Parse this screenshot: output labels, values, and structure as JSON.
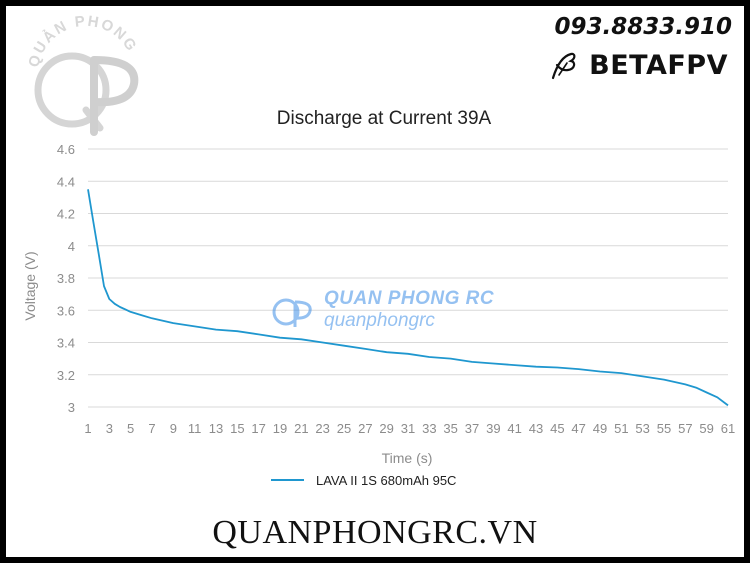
{
  "header": {
    "phone": "093.8833.910",
    "brand": "BETAFPV",
    "logo_text": "QUẢN PHONG"
  },
  "watermark": {
    "line1": "QUAN PHONG RC",
    "line2": "quanphongrc"
  },
  "footer": {
    "site": "QUANPHONGRC.VN"
  },
  "colors": {
    "series": "#1f97cf",
    "grid": "#d9d9d9",
    "watermark": "#3f8fe6"
  },
  "chart_data": {
    "type": "line",
    "title": "Discharge at Current 39A",
    "xlabel": "Time (s)",
    "ylabel": "Voltage (V)",
    "xlim": [
      1,
      61
    ],
    "ylim": [
      3,
      4.6
    ],
    "x_ticks": [
      "1",
      "3",
      "5",
      "7",
      "9",
      "11",
      "13",
      "15",
      "17",
      "19",
      "21",
      "23",
      "25",
      "27",
      "29",
      "31",
      "33",
      "35",
      "37",
      "39",
      "41",
      "43",
      "45",
      "47",
      "49",
      "51",
      "53",
      "55",
      "57",
      "59",
      "61"
    ],
    "y_ticks": [
      "3",
      "3.2",
      "3.4",
      "3.6",
      "3.8",
      "4",
      "4.2",
      "4.4",
      "4.6"
    ],
    "grid": true,
    "legend_position": "bottom",
    "series": [
      {
        "name": "LAVA II 1S 680mAh 95C",
        "x": [
          1,
          1.5,
          2,
          2.5,
          3,
          3.5,
          4,
          5,
          6,
          7,
          9,
          11,
          13,
          15,
          17,
          19,
          21,
          23,
          25,
          27,
          29,
          31,
          33,
          35,
          37,
          39,
          41,
          43,
          45,
          47,
          49,
          51,
          53,
          55,
          57,
          58,
          59,
          60,
          61
        ],
        "y": [
          4.35,
          4.15,
          3.95,
          3.75,
          3.67,
          3.64,
          3.62,
          3.59,
          3.57,
          3.55,
          3.52,
          3.5,
          3.48,
          3.47,
          3.45,
          3.43,
          3.42,
          3.4,
          3.38,
          3.36,
          3.34,
          3.33,
          3.31,
          3.3,
          3.28,
          3.27,
          3.26,
          3.25,
          3.245,
          3.235,
          3.22,
          3.21,
          3.19,
          3.17,
          3.14,
          3.12,
          3.09,
          3.06,
          3.01
        ]
      }
    ]
  }
}
